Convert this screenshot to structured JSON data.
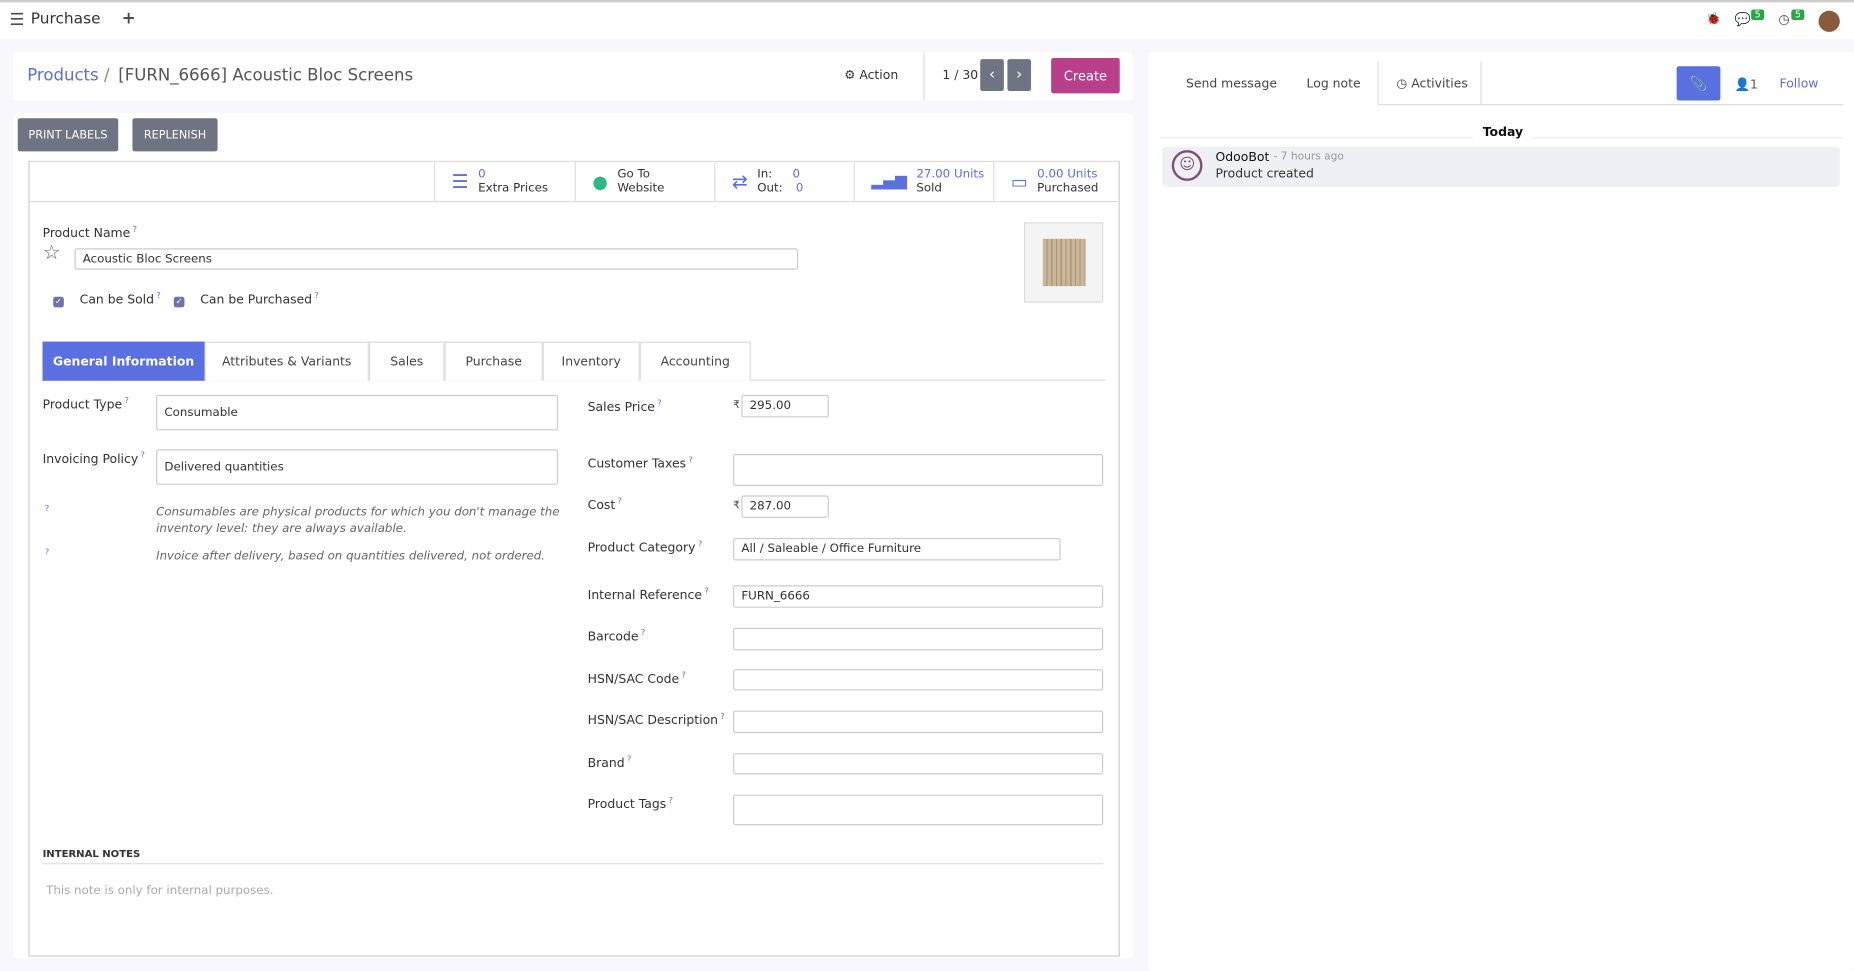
{
  "topbar": {
    "app": "Purchase",
    "plus": "+",
    "messages_count": "5",
    "activities_count": "5"
  },
  "breadcrumb": {
    "parent": "Products",
    "separator": "/",
    "current": "[FURN_6666] Acoustic Bloc Screens"
  },
  "control": {
    "action": "Action",
    "pager": "1 / 30",
    "create": "Create"
  },
  "buttons": {
    "print_labels": "PRINT LABELS",
    "replenish": "REPLENISH"
  },
  "stats": {
    "extra_prices_value": "0",
    "extra_prices_label": "Extra Prices",
    "website_line1": "Go To",
    "website_line2": "Website",
    "in_label": "In:",
    "in_value": "0",
    "out_label": "Out:",
    "out_value": "0",
    "sold_value": "27.00 Units",
    "sold_label": "Sold",
    "purchased_value": "0.00 Units",
    "purchased_label": "Purchased"
  },
  "product": {
    "name_label": "Product Name",
    "name": "Acoustic Bloc Screens",
    "can_be_sold": "Can be Sold",
    "can_be_purchased": "Can be Purchased",
    "q": "?"
  },
  "tabs": [
    "General Information",
    "Attributes & Variants",
    "Sales",
    "Purchase",
    "Inventory",
    "Accounting"
  ],
  "general": {
    "product_type_label": "Product Type",
    "product_type": "Consumable",
    "invoicing_label": "Invoicing Policy",
    "invoicing": "Delivered quantities",
    "help1": "Consumables are physical products for which you don't manage the inventory level: they are always available.",
    "help2": "Invoice after delivery, based on quantities delivered, not ordered.",
    "sales_price_label": "Sales Price",
    "currency": "₹",
    "sales_price": "295.00",
    "customer_taxes_label": "Customer Taxes",
    "cost_label": "Cost",
    "cost": "287.00",
    "category_label": "Product Category",
    "category": "All / Saleable / Office Furniture",
    "internal_ref_label": "Internal Reference",
    "internal_ref": "FURN_6666",
    "barcode_label": "Barcode",
    "hsn_code_label": "HSN/SAC Code",
    "hsn_desc_label": "HSN/SAC Description",
    "brand_label": "Brand",
    "tags_label": "Product Tags"
  },
  "notes": {
    "label": "INTERNAL NOTES",
    "placeholder": "This note is only for internal purposes."
  },
  "chatter": {
    "send_message": "Send message",
    "log_note": "Log note",
    "activities": "Activities",
    "followers": "1",
    "follow": "Follow",
    "today": "Today",
    "author": "OdooBot",
    "time": "- 7 hours ago",
    "body": "Product created"
  },
  "colors": {
    "primary": "#5a6fe0",
    "create": "#b83f8a",
    "badge": "#28a745"
  }
}
